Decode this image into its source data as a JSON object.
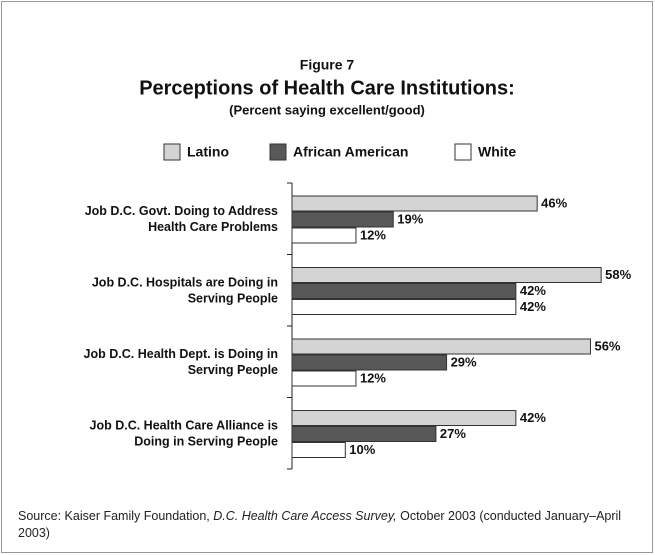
{
  "chart_data": {
    "type": "bar",
    "orientation": "horizontal",
    "figure_label": "Figure 7",
    "title": "Perceptions of Health Care Institutions:",
    "subtitle": "(Percent saying excellent/good)",
    "categories": [
      "Job D.C. Govt. Doing to Address\nHealth Care Problems",
      "Job D.C. Hospitals are Doing in\nServing People",
      "Job D.C. Health Dept. is Doing in\nServing People",
      "Job D.C. Health Care Alliance is\nDoing in Serving People"
    ],
    "series": [
      {
        "name": "Latino",
        "color": "#d4d4d4",
        "values": [
          46,
          58,
          56,
          42
        ],
        "value_labels": [
          "46%",
          "58%",
          "56%",
          "42%"
        ]
      },
      {
        "name": "African American",
        "color": "#585858",
        "values": [
          19,
          42,
          29,
          27
        ],
        "value_labels": [
          "19%",
          "42%",
          "29%",
          "27%"
        ]
      },
      {
        "name": "White",
        "color": "#ffffff",
        "values": [
          12,
          42,
          12,
          10
        ],
        "value_labels": [
          "12%",
          "42%",
          "12%",
          "10%"
        ]
      }
    ],
    "source": {
      "prefix": "Source: Kaiser Family Foundation, ",
      "italic": "D.C. Health Care Access Survey,",
      "suffix": " October 2003 (conducted January–April 2003)"
    }
  }
}
